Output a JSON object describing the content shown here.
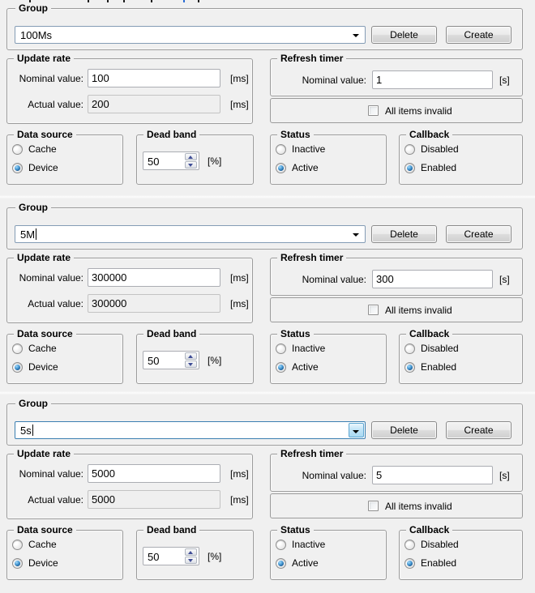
{
  "colors": {
    "window_bg": "#f0f0f0",
    "focus_border": "#3c7fb1",
    "radio_dot_blue": "#1b5d97",
    "spin_arrow_blue": "#3f4d96"
  },
  "panels": [
    {
      "group": {
        "label": "Group",
        "value": "100Ms",
        "delete": "Delete",
        "create": "Create",
        "focused": false,
        "caret": false
      },
      "update_rate": {
        "label": "Update rate",
        "nominal_label": "Nominal value:",
        "nominal": "100",
        "actual_label": "Actual value:",
        "actual": "200",
        "unit": "[ms]"
      },
      "refresh_timer": {
        "label": "Refresh timer",
        "nominal_label": "Nominal value:",
        "nominal": "1",
        "unit": "[s]",
        "checkbox": "All items invalid",
        "checked": false
      },
      "data_source": {
        "label": "Data source",
        "options": [
          {
            "label": "Cache",
            "selected": false
          },
          {
            "label": "Device",
            "selected": true
          }
        ]
      },
      "dead_band": {
        "label": "Dead band",
        "value": "50",
        "unit": "[%]"
      },
      "status": {
        "label": "Status",
        "options": [
          {
            "label": "Inactive",
            "selected": false
          },
          {
            "label": "Active",
            "selected": true
          }
        ]
      },
      "callback": {
        "label": "Callback",
        "options": [
          {
            "label": "Disabled",
            "selected": false
          },
          {
            "label": "Enabled",
            "selected": true
          }
        ]
      }
    },
    {
      "group": {
        "label": "Group",
        "value": "5M",
        "delete": "Delete",
        "create": "Create",
        "focused": false,
        "caret": true
      },
      "update_rate": {
        "label": "Update rate",
        "nominal_label": "Nominal value:",
        "nominal": "300000",
        "actual_label": "Actual value:",
        "actual": "300000",
        "unit": "[ms]"
      },
      "refresh_timer": {
        "label": "Refresh timer",
        "nominal_label": "Nominal value:",
        "nominal": "300",
        "unit": "[s]",
        "checkbox": "All items invalid",
        "checked": false
      },
      "data_source": {
        "label": "Data source",
        "options": [
          {
            "label": "Cache",
            "selected": false
          },
          {
            "label": "Device",
            "selected": true
          }
        ]
      },
      "dead_band": {
        "label": "Dead band",
        "value": "50",
        "unit": "[%]"
      },
      "status": {
        "label": "Status",
        "options": [
          {
            "label": "Inactive",
            "selected": false
          },
          {
            "label": "Active",
            "selected": true
          }
        ]
      },
      "callback": {
        "label": "Callback",
        "options": [
          {
            "label": "Disabled",
            "selected": false
          },
          {
            "label": "Enabled",
            "selected": true
          }
        ]
      }
    },
    {
      "group": {
        "label": "Group",
        "value": "5s",
        "delete": "Delete",
        "create": "Create",
        "focused": true,
        "caret": true
      },
      "update_rate": {
        "label": "Update rate",
        "nominal_label": "Nominal value:",
        "nominal": "5000",
        "actual_label": "Actual value:",
        "actual": "5000",
        "unit": "[ms]"
      },
      "refresh_timer": {
        "label": "Refresh timer",
        "nominal_label": "Nominal value:",
        "nominal": "5",
        "unit": "[s]",
        "checkbox": "All items invalid",
        "checked": false
      },
      "data_source": {
        "label": "Data source",
        "options": [
          {
            "label": "Cache",
            "selected": false
          },
          {
            "label": "Device",
            "selected": true
          }
        ]
      },
      "dead_band": {
        "label": "Dead band",
        "value": "50",
        "unit": "[%]"
      },
      "status": {
        "label": "Status",
        "options": [
          {
            "label": "Inactive",
            "selected": false
          },
          {
            "label": "Active",
            "selected": true
          }
        ]
      },
      "callback": {
        "label": "Callback",
        "options": [
          {
            "label": "Disabled",
            "selected": false
          },
          {
            "label": "Enabled",
            "selected": true
          }
        ]
      }
    }
  ]
}
